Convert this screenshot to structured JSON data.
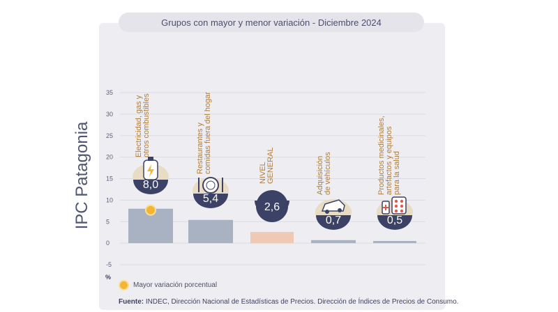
{
  "page": {
    "side_title": "IPC Patagonia",
    "legend_label": "Mayor variación porcentual",
    "source_bold": "Fuente:",
    "source_text": " INDEC, Dirección Nacional de Estadísticas de Precios. Dirección de Índices de Precios de Consumo."
  },
  "chart_data": {
    "type": "bar",
    "title": "Grupos con mayor y menor variación - Diciembre 2024",
    "xlabel": "",
    "ylabel": "%",
    "ylim": [
      -5,
      35
    ],
    "yticks": [
      -5,
      0,
      5,
      10,
      15,
      20,
      25,
      30,
      35
    ],
    "grid": true,
    "categories": [
      "Electricidad, gas y otros combustibles",
      "Restaurantes y comidas fuera del hogar",
      "NIVEL GENERAL",
      "Adquisición de vehículos",
      "Productos medicinales, artefactos y equipos para la salud"
    ],
    "category_label_lines": [
      [
        "Electricidad, gas y",
        "otros combustibles"
      ],
      [
        "Restaurantes y",
        "comidas fuera del hogar"
      ],
      [
        "NIVEL",
        "GENERAL"
      ],
      [
        "Adquisición",
        "de vehículos"
      ],
      [
        "Productos medicinales,",
        "artefactos y equipos",
        "para la salud"
      ]
    ],
    "values": [
      8.0,
      5.4,
      2.6,
      0.7,
      0.5
    ],
    "value_labels": [
      "8,0",
      "5,4",
      "2,6",
      "0,7",
      "0,5"
    ],
    "icons": [
      "gas-cylinder-bolt-icon",
      "plate-fork-knife-icon",
      "",
      "car-icon",
      "medicine-pills-icon"
    ],
    "highlight_index": 0,
    "colors": {
      "bar": "#a9b2c3",
      "bar_general": "#efc9b4",
      "bubble": "#3c4166",
      "icon_bg": "#e8dcc4",
      "accent": "#f2b632",
      "label": "#b07c38"
    }
  }
}
